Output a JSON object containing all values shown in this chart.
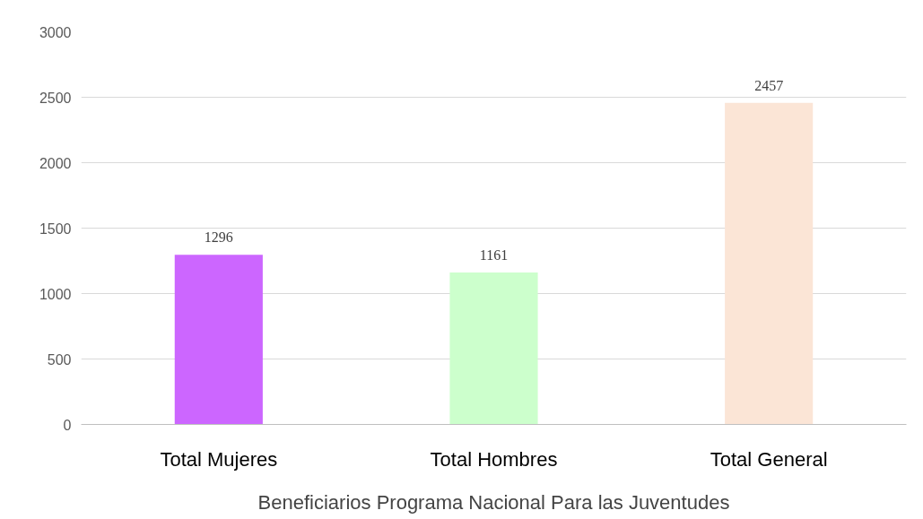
{
  "chart_data": {
    "type": "bar",
    "xlabel": "Beneficiarios Programa Nacional Para las Juventudes",
    "categories": [
      "Total Mujeres",
      "Total Hombres",
      "Total General"
    ],
    "values": [
      1296,
      1161,
      2457
    ],
    "colors": [
      "#cc66ff",
      "#ccffcc",
      "#fbe5d6"
    ],
    "ylim": [
      0,
      3000
    ],
    "yticks": [
      0,
      500,
      1000,
      1500,
      2000,
      2500,
      3000
    ],
    "grid": "y",
    "data_labels": true
  }
}
